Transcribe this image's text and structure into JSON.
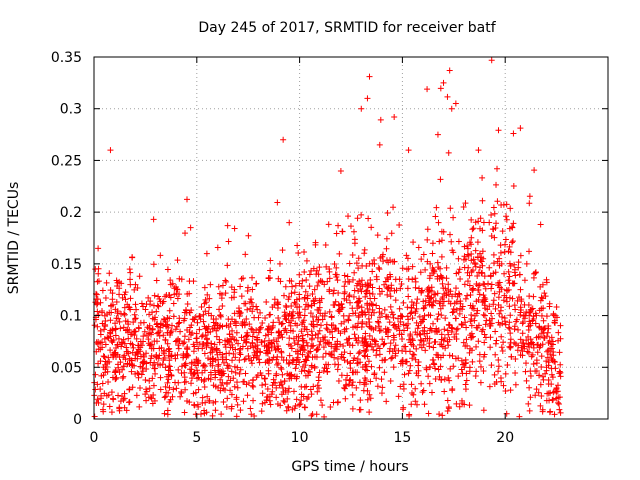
{
  "chart_data": {
    "type": "scatter",
    "title": "Day 245 of 2017, SRMTID for receiver batf",
    "xlabel": "GPS time / hours",
    "ylabel": "SRMTID / TECUs",
    "xlim": [
      0,
      25
    ],
    "ylim": [
      0,
      0.35
    ],
    "x_ticks": [
      0,
      5,
      10,
      15,
      20
    ],
    "x_tick_labels": [
      "0",
      "5",
      "10",
      "15",
      "20"
    ],
    "y_ticks": [
      0,
      0.05,
      0.1,
      0.15,
      0.2,
      0.25,
      0.3,
      0.35
    ],
    "y_tick_labels": [
      "0",
      "0.05",
      "0.1",
      "0.15",
      "0.2",
      "0.25",
      "0.3",
      "0.35"
    ],
    "grid": true,
    "legend": "none",
    "marker": "plus",
    "color": "#ff0000",
    "x_data_extent": [
      0,
      22.7
    ],
    "mean_profile": {
      "x": [
        0,
        1,
        2,
        3,
        4,
        5,
        6,
        7,
        8,
        9,
        10,
        11,
        12,
        13,
        14,
        15,
        16,
        17,
        18,
        19,
        20,
        21,
        22,
        22.7
      ],
      "y": [
        0.07,
        0.075,
        0.07,
        0.075,
        0.075,
        0.065,
        0.07,
        0.075,
        0.065,
        0.075,
        0.075,
        0.08,
        0.09,
        0.095,
        0.1,
        0.085,
        0.09,
        0.1,
        0.105,
        0.11,
        0.12,
        0.09,
        0.07,
        0.04
      ]
    },
    "outliers": [
      {
        "x": 0.8,
        "y": 0.26
      },
      {
        "x": 9.2,
        "y": 0.27
      },
      {
        "x": 13.4,
        "y": 0.331
      },
      {
        "x": 13.3,
        "y": 0.31
      },
      {
        "x": 13.0,
        "y": 0.3
      },
      {
        "x": 14.6,
        "y": 0.292
      },
      {
        "x": 16.2,
        "y": 0.319
      },
      {
        "x": 17.3,
        "y": 0.337
      },
      {
        "x": 17.0,
        "y": 0.325
      },
      {
        "x": 17.6,
        "y": 0.305
      },
      {
        "x": 20.4,
        "y": 0.276
      },
      {
        "x": 18.7,
        "y": 0.26
      },
      {
        "x": 15.3,
        "y": 0.26
      },
      {
        "x": 13.9,
        "y": 0.265
      },
      {
        "x": 17.4,
        "y": 0.3
      },
      {
        "x": 0.2,
        "y": 0.165
      },
      {
        "x": 2.9,
        "y": 0.193
      },
      {
        "x": 6.5,
        "y": 0.187
      },
      {
        "x": 4.7,
        "y": 0.185
      }
    ]
  }
}
